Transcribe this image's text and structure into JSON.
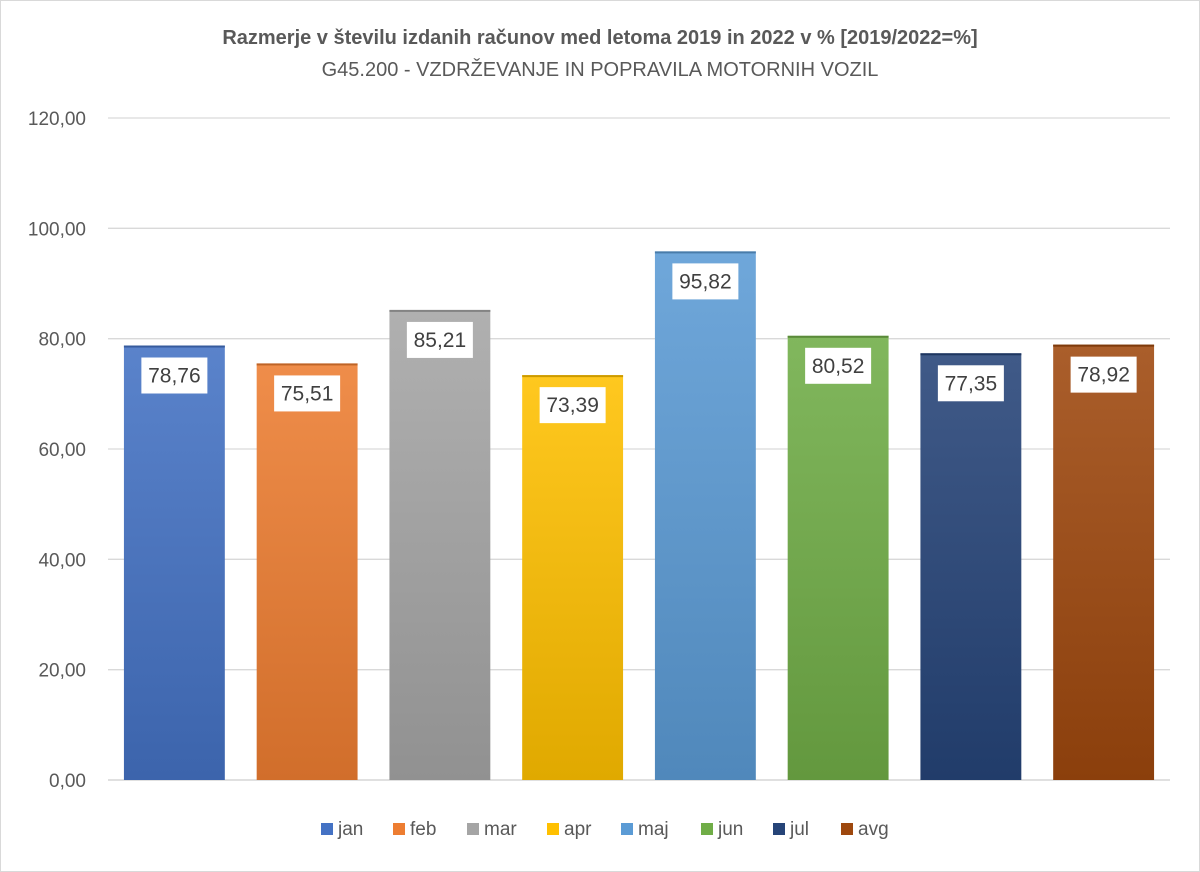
{
  "chart_data": {
    "type": "bar",
    "title": "Razmerje v številu izdanih računov med letoma 2019 in 2022 v % [2019/2022=%]",
    "subtitle": "G45.200 - VZDRŽEVANJE IN POPRAVILA MOTORNIH VOZIL",
    "categories": [
      "jan",
      "feb",
      "mar",
      "apr",
      "maj",
      "jun",
      "jul",
      "avg"
    ],
    "values": [
      78.76,
      75.51,
      85.21,
      73.39,
      95.82,
      80.52,
      77.35,
      78.92
    ],
    "value_labels": [
      "78,76",
      "75,51",
      "85,21",
      "73,39",
      "95,82",
      "80,52",
      "77,35",
      "78,92"
    ],
    "colors": [
      "#4472C4",
      "#ED7D31",
      "#A5A5A5",
      "#FFC000",
      "#5B9BD5",
      "#70AD47",
      "#264478",
      "#9E480E"
    ],
    "y_ticks": [
      "0,00",
      "20,00",
      "40,00",
      "60,00",
      "80,00",
      "100,00",
      "120,00"
    ],
    "ylim": [
      0,
      120
    ],
    "grid": true,
    "legend_position": "bottom"
  }
}
